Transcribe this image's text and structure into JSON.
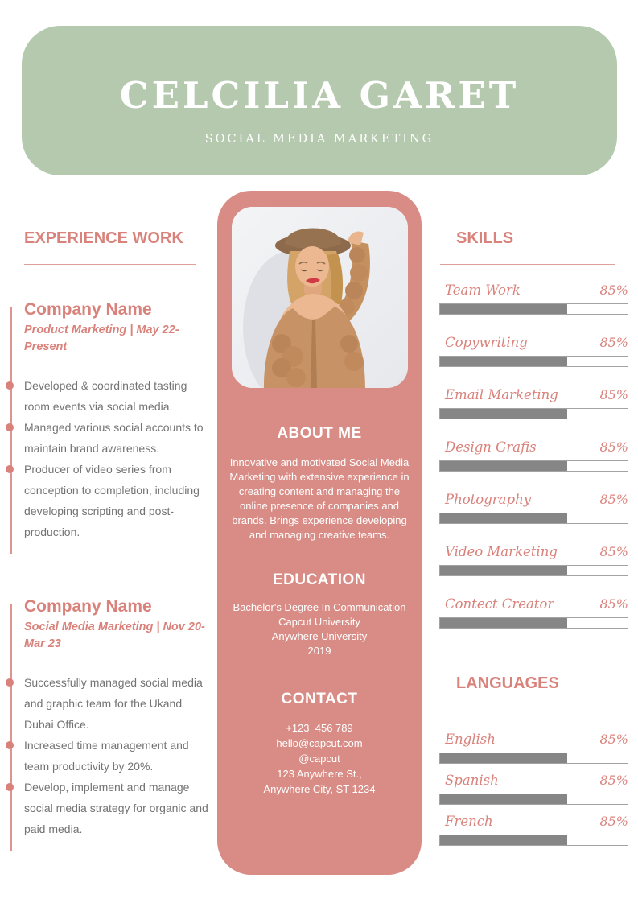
{
  "header": {
    "name": "CELCILIA GARET",
    "subtitle": "SOCIAL MEDIA MARKETING"
  },
  "experience": {
    "title": "EXPERIENCE WORK",
    "jobs": [
      {
        "company": "Company Name",
        "meta": "Product Marketing | May 22-Present",
        "bullets": [
          "Developed & coordinated tasting room events via social media.",
          "Managed various social accounts to maintain brand awareness.",
          "Producer of video series from conception to completion, including developing scripting and post-production."
        ]
      },
      {
        "company": "Company Name",
        "meta": "Social Media Marketing | Nov 20-Mar 23",
        "bullets": [
          "Successfully managed social media and graphic team for the Ukand Dubai Office.",
          "Increased time management and team productivity by 20%.",
          "Develop, implement and manage social media strategy for organic and  paid media."
        ]
      }
    ]
  },
  "profile": {
    "photo": "woman-in-hat-and-knit-cardigan-portrait",
    "about_title": "ABOUT ME",
    "about_text": "Innovative and motivated Social Media Marketing with extensive experience in creating content and managing the online presence of companies and brands. Brings experience developing and managing creative teams.",
    "education_title": "EDUCATION",
    "education_lines": [
      "Bachelor's Degree In Communication",
      "Capcut University",
      "Anywhere University",
      "2019"
    ],
    "contact_title": "CONTACT",
    "contact_lines": [
      "+123  456 789",
      "hello@capcut.com",
      "@capcut",
      "123 Anywhere St.,",
      "Anywhere City, ST 1234"
    ]
  },
  "skills": {
    "title": "SKILLS",
    "items": [
      {
        "label": "Team Work",
        "value": "85%",
        "fill_pct": 68
      },
      {
        "label": "Copywriting",
        "value": "85%",
        "fill_pct": 68
      },
      {
        "label": "Email Marketing",
        "value": "85%",
        "fill_pct": 68
      },
      {
        "label": "Design Grafis",
        "value": "85%",
        "fill_pct": 68
      },
      {
        "label": "Photography",
        "value": "85%",
        "fill_pct": 68
      },
      {
        "label": "Video Marketing",
        "value": "85%",
        "fill_pct": 68
      },
      {
        "label": "Contect Creator",
        "value": "85%",
        "fill_pct": 68
      }
    ]
  },
  "languages": {
    "title": "LANGUAGES",
    "items": [
      {
        "label": "English",
        "value": "85%",
        "fill_pct": 68
      },
      {
        "label": "Spanish",
        "value": "85%",
        "fill_pct": 68
      },
      {
        "label": "French",
        "value": "85%",
        "fill_pct": 68
      }
    ]
  },
  "colors": {
    "header_bg": "#b5c9ae",
    "panel_bg": "#d88c85",
    "accent": "#d9827b",
    "rule": "#e0a09a",
    "bar_fill": "#868686",
    "bar_border": "#a3a3a3",
    "body_text": "#737373"
  }
}
